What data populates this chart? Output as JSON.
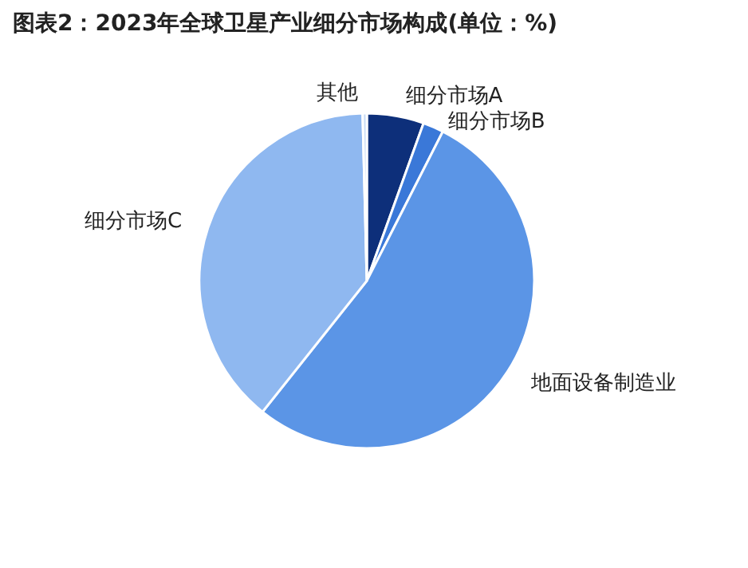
{
  "chart_data": {
    "type": "pie",
    "title": "图表2：2023年全球卫星产业细分市场构成(单位：%)",
    "categories": [
      "细分市场A",
      "细分市场B",
      "地面设备制造业",
      "细分市场C",
      "其他"
    ],
    "values": [
      5.5,
      2,
      53.2,
      38.9,
      0.4
    ],
    "colors": [
      "#0d2f7a",
      "#3a78d8",
      "#5b95e6",
      "#8fb8f0",
      "#c8dcf7"
    ],
    "legend": false
  }
}
